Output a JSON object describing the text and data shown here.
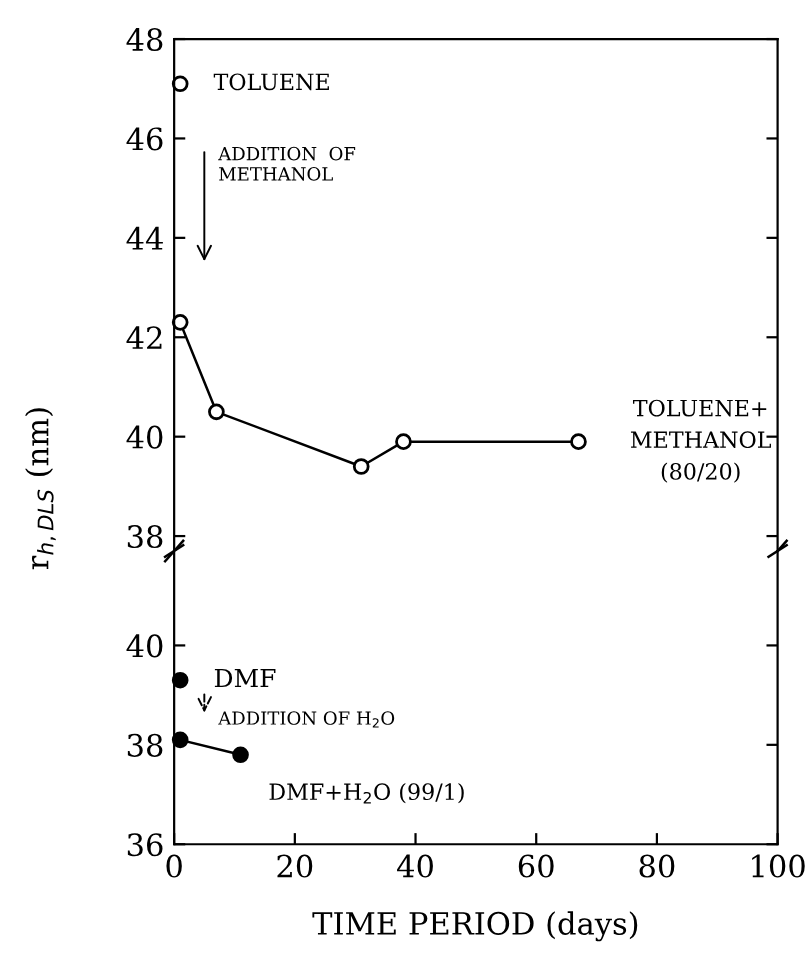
{
  "chart_data": [
    {
      "type": "line",
      "xlim": [
        0,
        100
      ],
      "ylim": [
        37.7,
        48
      ],
      "yticks": [
        38,
        40,
        42,
        44,
        46,
        48
      ],
      "tick_labels": "y",
      "marker": "circle",
      "ylabel": "r$_{h,DLS}$ (nm)",
      "series": [
        {
          "type": "scatter",
          "color": "#000000",
          "x": [
            1
          ],
          "values": [
            47.1
          ]
        },
        {
          "color": "#000000",
          "x": [
            1,
            7,
            31,
            38,
            67
          ],
          "values": [
            42.3,
            40.5,
            39.4,
            39.9,
            39.9
          ]
        }
      ],
      "annotations": [
        {
          "text": "TOLUENE",
          "x": 1,
          "y": 47.1
        },
        "ADDITION  OF\nMETHANOL",
        {
          "text": "TOLUENE+\nMETHANOL\n(80/20)",
          "x": 67,
          "y": 39.9
        }
      ]
    },
    {
      "type": "line",
      "xlim": [
        0,
        100
      ],
      "xticks": [
        0,
        20,
        40,
        60,
        80,
        100
      ],
      "ylim": [
        36,
        41.9
      ],
      "yticks": [
        36,
        38,
        40
      ],
      "marker": "circle",
      "xlabel": "TIME PERIOD (days)",
      "series": [
        {
          "type": "scatter",
          "color": "#000000",
          "x": [
            1
          ],
          "values": [
            39.3
          ]
        },
        {
          "color": "#000000",
          "x": [
            1,
            11
          ],
          "values": [
            38.1,
            37.8
          ]
        }
      ],
      "annotations": [
        {
          "text": "DMF",
          "x": 1,
          "y": 39.3
        },
        "ADDITION OF H$_{2}$O",
        {
          "text": "DMF+H$_{2}$O (99/1)",
          "x": 11,
          "y": 37.8
        }
      ]
    }
  ]
}
